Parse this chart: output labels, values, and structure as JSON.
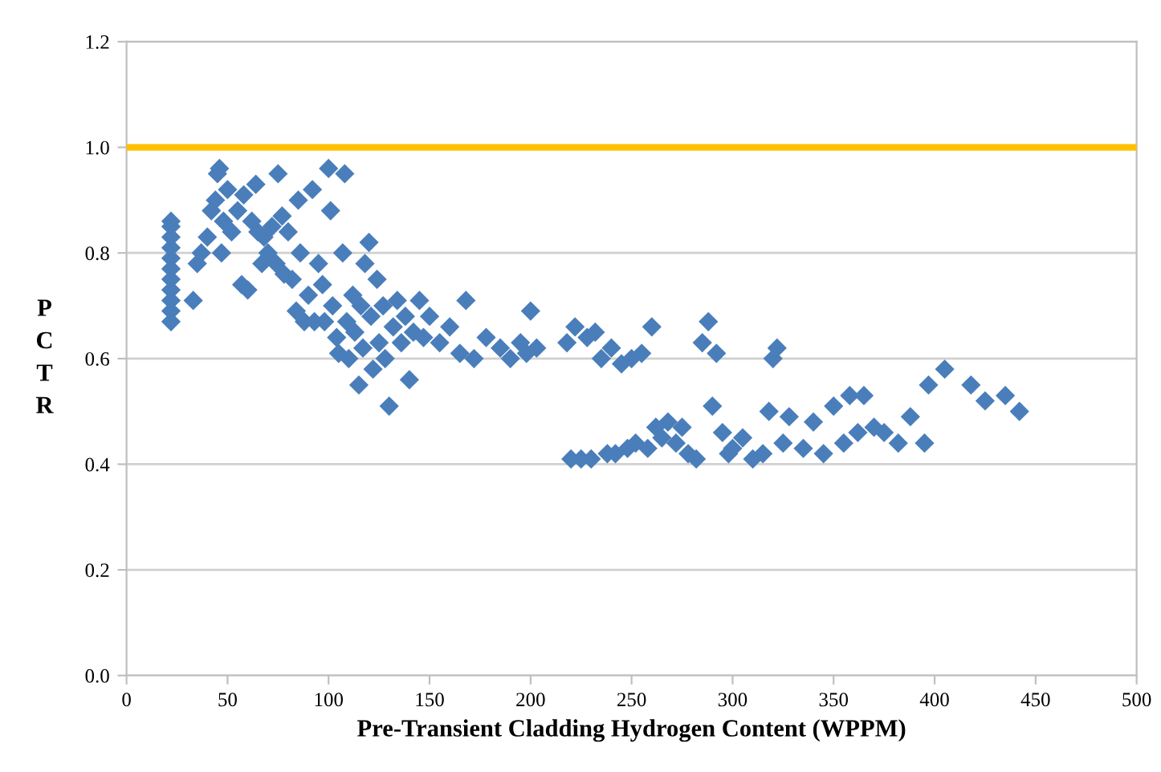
{
  "chart_data": {
    "type": "scatter",
    "xlabel": "Pre-Transient Cladding Hydrogen Content (WPPM)",
    "ylabel": "PCTR",
    "xlim": [
      0,
      500
    ],
    "xticks": [
      0,
      50,
      100,
      150,
      200,
      250,
      300,
      350,
      400,
      450,
      500
    ],
    "ylim": [
      0,
      1.2
    ],
    "yticks": [
      {
        "value": 0,
        "label": "0.0"
      },
      {
        "value": 0.2,
        "label": "0.2"
      },
      {
        "value": 0.4,
        "label": "0.4"
      },
      {
        "value": 0.6,
        "label": "0.6"
      },
      {
        "value": 0.8,
        "label": "0.8"
      },
      {
        "value": 1.0,
        "label": "1.0"
      },
      {
        "value": 1.2,
        "label": "1.2"
      }
    ],
    "grid": "y",
    "marker": "diamond",
    "ref_lines": [
      {
        "axis": "y",
        "value": 1.0,
        "color": "#ffc000"
      }
    ],
    "series": [
      {
        "color": "#4a7ebb",
        "x": [
          22,
          22,
          22,
          22,
          22,
          22,
          22,
          22,
          22,
          22,
          22,
          33,
          35,
          37,
          40,
          42,
          44,
          45,
          46,
          47,
          48,
          50,
          52,
          55,
          57,
          58,
          60,
          62,
          64,
          65,
          67,
          68,
          70,
          72,
          74,
          75,
          77,
          78,
          80,
          82,
          84,
          85,
          86,
          88,
          90,
          92,
          93,
          95,
          97,
          98,
          100,
          101,
          102,
          104,
          105,
          107,
          108,
          109,
          110,
          112,
          113,
          115,
          116,
          117,
          118,
          120,
          121,
          122,
          124,
          125,
          127,
          128,
          130,
          132,
          134,
          136,
          138,
          140,
          142,
          145,
          147,
          150,
          155,
          160,
          165,
          168,
          172,
          178,
          185,
          190,
          195,
          198,
          200,
          203,
          218,
          220,
          222,
          225,
          228,
          230,
          232,
          235,
          238,
          240,
          242,
          245,
          248,
          250,
          252,
          255,
          258,
          260,
          262,
          265,
          268,
          272,
          275,
          278,
          282,
          285,
          288,
          290,
          292,
          295,
          298,
          300,
          305,
          310,
          315,
          318,
          320,
          322,
          325,
          328,
          335,
          340,
          345,
          350,
          355,
          358,
          362,
          365,
          370,
          375,
          382,
          388,
          395,
          397,
          405,
          418,
          425,
          435,
          442
        ],
        "values": [
          0.67,
          0.69,
          0.71,
          0.73,
          0.75,
          0.77,
          0.79,
          0.81,
          0.83,
          0.85,
          0.86,
          0.71,
          0.78,
          0.8,
          0.83,
          0.88,
          0.9,
          0.95,
          0.96,
          0.8,
          0.86,
          0.92,
          0.84,
          0.88,
          0.74,
          0.91,
          0.73,
          0.86,
          0.93,
          0.84,
          0.78,
          0.83,
          0.8,
          0.85,
          0.78,
          0.95,
          0.87,
          0.76,
          0.84,
          0.75,
          0.69,
          0.9,
          0.8,
          0.67,
          0.72,
          0.92,
          0.67,
          0.78,
          0.74,
          0.67,
          0.96,
          0.88,
          0.7,
          0.64,
          0.61,
          0.8,
          0.95,
          0.67,
          0.6,
          0.72,
          0.65,
          0.55,
          0.7,
          0.62,
          0.78,
          0.82,
          0.68,
          0.58,
          0.75,
          0.63,
          0.7,
          0.6,
          0.51,
          0.66,
          0.71,
          0.63,
          0.68,
          0.56,
          0.65,
          0.71,
          0.64,
          0.68,
          0.63,
          0.66,
          0.61,
          0.71,
          0.6,
          0.64,
          0.62,
          0.6,
          0.63,
          0.61,
          0.69,
          0.62,
          0.63,
          0.41,
          0.66,
          0.41,
          0.64,
          0.41,
          0.65,
          0.6,
          0.42,
          0.62,
          0.42,
          0.59,
          0.43,
          0.6,
          0.44,
          0.61,
          0.43,
          0.66,
          0.47,
          0.45,
          0.48,
          0.44,
          0.47,
          0.42,
          0.41,
          0.63,
          0.67,
          0.51,
          0.61,
          0.46,
          0.42,
          0.43,
          0.45,
          0.41,
          0.42,
          0.5,
          0.6,
          0.62,
          0.44,
          0.49,
          0.43,
          0.48,
          0.42,
          0.51,
          0.44,
          0.53,
          0.46,
          0.53,
          0.47,
          0.46,
          0.44,
          0.49,
          0.44,
          0.55,
          0.58,
          0.55,
          0.52,
          0.53,
          0.5
        ]
      }
    ]
  }
}
